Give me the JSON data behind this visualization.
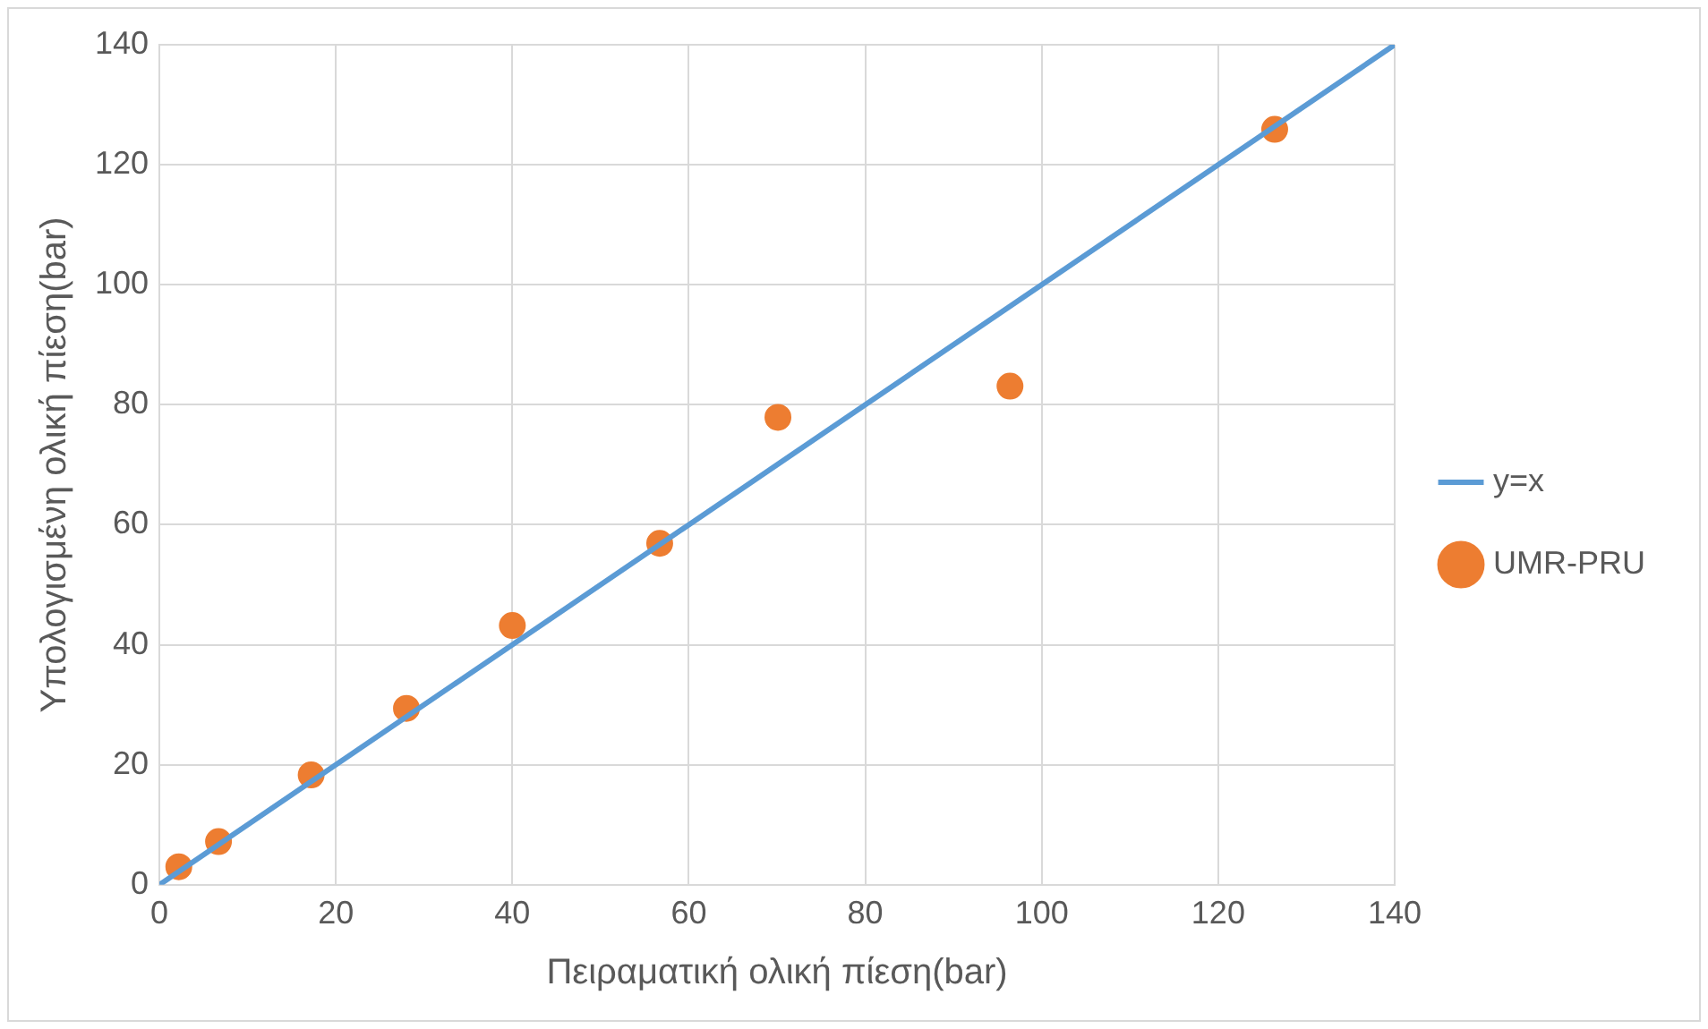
{
  "chart_data": {
    "type": "scatter",
    "xlabel": "Πειραματική ολική πίεση(bar)",
    "ylabel": "Υπολογισμένη ολική πίεση(bar)",
    "xlim": [
      0,
      140
    ],
    "xticks": [
      0,
      20,
      40,
      60,
      80,
      100,
      120,
      140
    ],
    "ylim": [
      0,
      140
    ],
    "yticks": [
      0,
      20,
      40,
      60,
      80,
      100,
      120,
      140
    ],
    "grid": true,
    "legend": "right",
    "series": [
      {
        "name": "y=x",
        "type": "line",
        "color": "#5b9bd5",
        "x": [
          0,
          140
        ],
        "values": [
          0,
          140
        ]
      },
      {
        "name": "UMR-PRU",
        "type": "scatter",
        "marker": "circle",
        "color": "#ed7d31",
        "x": [
          2.2,
          6.7,
          17.2,
          28,
          40,
          56.7,
          70.1,
          96.4,
          126.4
        ],
        "values": [
          3,
          7.2,
          18.3,
          29.4,
          43.2,
          56.9,
          77.9,
          83.1,
          125.9
        ]
      }
    ]
  }
}
